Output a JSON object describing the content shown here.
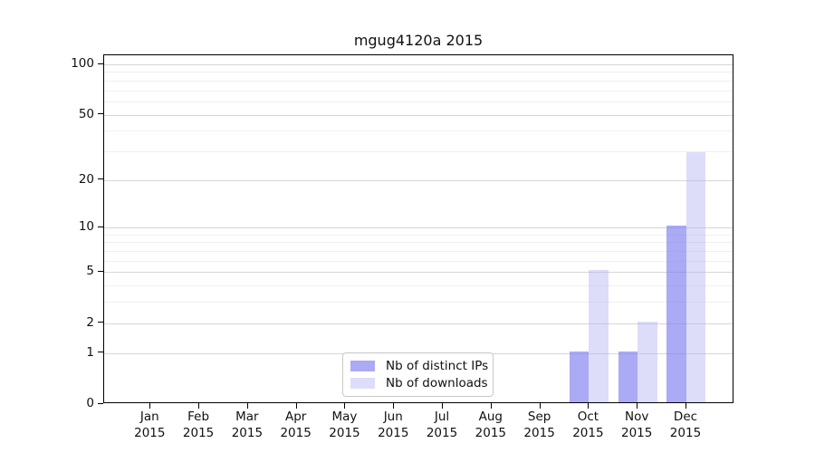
{
  "chart_data": {
    "type": "bar",
    "title": "mgug4120a 2015",
    "categories": [
      "Jan 2015",
      "Feb 2015",
      "Mar 2015",
      "Apr 2015",
      "May 2015",
      "Jun 2015",
      "Jul 2015",
      "Aug 2015",
      "Sep 2015",
      "Oct 2015",
      "Nov 2015",
      "Dec 2015"
    ],
    "series": [
      {
        "name": "Nb of distinct IPs",
        "color": "rgba(125,125,240,0.65)",
        "solid_color": "#aaaaf5",
        "values": [
          0,
          0,
          0,
          0,
          0,
          0,
          0,
          0,
          0,
          1,
          1,
          10
        ]
      },
      {
        "name": "Nb of downloads",
        "color": "rgba(180,180,242,0.45)",
        "solid_color": "#dcdcf9",
        "values": [
          0,
          0,
          0,
          0,
          0,
          0,
          0,
          0,
          0,
          5,
          2,
          29
        ]
      }
    ],
    "yscale": "log1p",
    "ylim": [
      0,
      113
    ],
    "yticks": [
      0,
      1,
      2,
      5,
      10,
      20,
      50,
      100
    ],
    "minor_gridlines": [
      3,
      4,
      6,
      7,
      8,
      9,
      30,
      40,
      60,
      70,
      80,
      90
    ],
    "grid": true,
    "legend_position": "lower center",
    "colors": {
      "axis": "#000000",
      "grid_major": "#d6d6d6",
      "grid_minor": "#efefef",
      "legend_border": "#c9c9c9"
    }
  }
}
